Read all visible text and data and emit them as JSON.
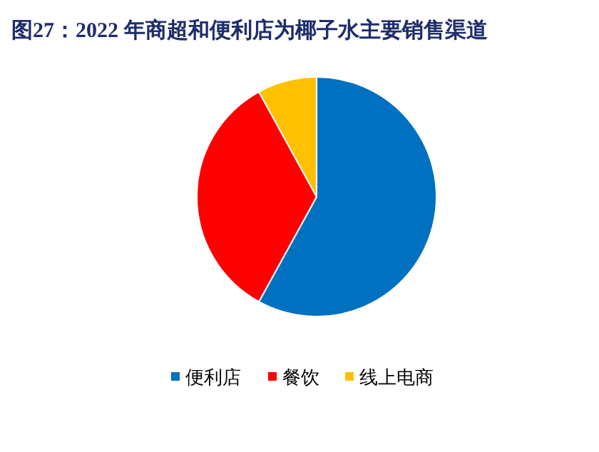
{
  "chart_data": {
    "type": "pie",
    "title": "图27：2022 年商超和便利店为椰子水主要销售渠道",
    "categories": [
      "便利店",
      "餐饮",
      "线上电商"
    ],
    "values": [
      58,
      34,
      8
    ],
    "colors": [
      "#0070c0",
      "#ff0000",
      "#ffc000"
    ],
    "legend": "bottom"
  }
}
